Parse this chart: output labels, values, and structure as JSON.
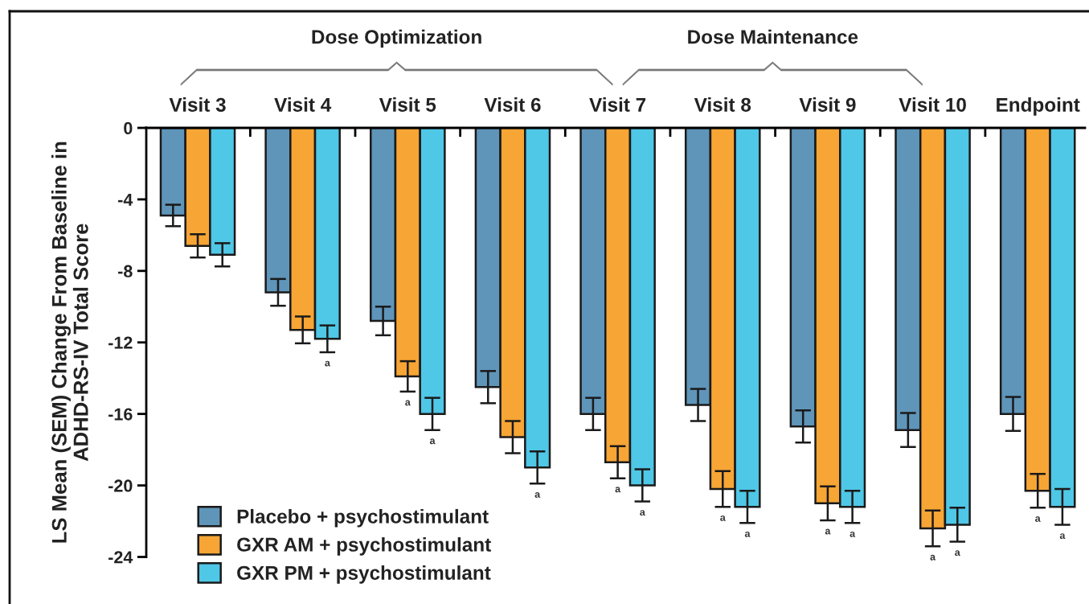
{
  "chart_data": {
    "type": "bar",
    "categories": [
      "Visit 3",
      "Visit 4",
      "Visit 5",
      "Visit 6",
      "Visit 7",
      "Visit 8",
      "Visit 9",
      "Visit 10",
      "Endpoint"
    ],
    "series": [
      {
        "name": "Placebo + psychostimulant",
        "color": "#5f95b9",
        "values": [
          -4.9,
          -9.2,
          -10.8,
          -14.5,
          -16.0,
          -15.5,
          -16.7,
          -16.9,
          -16.0
        ],
        "errors": [
          0.6,
          0.75,
          0.8,
          0.9,
          0.9,
          0.9,
          0.9,
          0.95,
          0.95
        ]
      },
      {
        "name": "GXR AM + psychostimulant",
        "color": "#f7a535",
        "values": [
          -6.6,
          -11.3,
          -13.9,
          -17.3,
          -18.7,
          -20.2,
          -21.0,
          -22.4,
          -20.3
        ],
        "errors": [
          0.65,
          0.75,
          0.85,
          0.9,
          0.9,
          1.0,
          0.95,
          1.0,
          0.95
        ],
        "value_labels": [
          null,
          null,
          "a",
          null,
          "a",
          "a",
          "a",
          "a",
          "a"
        ]
      },
      {
        "name": "GXR PM + psychostimulant",
        "color": "#4fc7e6",
        "values": [
          -7.1,
          -11.8,
          -16.0,
          -19.0,
          -20.0,
          -21.2,
          -21.2,
          -22.2,
          -21.2
        ],
        "errors": [
          0.65,
          0.75,
          0.9,
          0.9,
          0.9,
          0.9,
          0.9,
          0.95,
          1.0
        ],
        "value_labels": [
          null,
          "a",
          "a",
          "a",
          "a",
          "a",
          "a",
          "a",
          "a"
        ]
      }
    ],
    "ylabel": "LS Mean (SEM) Change From Baseline in\nADHD-RS-IV Total Score",
    "annotations": [
      "Dose Optimization",
      "Dose Maintenance"
    ],
    "ylim": [
      -24,
      0
    ],
    "yticks": [
      0,
      -4,
      -8,
      -12,
      -16,
      -20,
      -24
    ],
    "legend": "bottom left"
  }
}
